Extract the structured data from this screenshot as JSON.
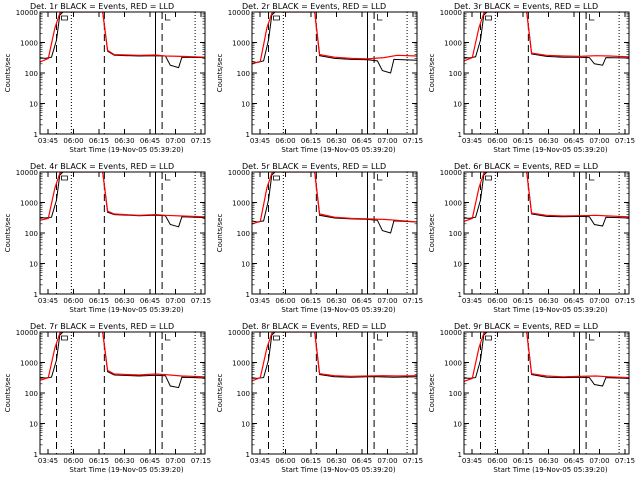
{
  "chart_data": {
    "type": "line",
    "y_scale": "log",
    "ylim": [
      1,
      10000
    ],
    "y_ticks": [
      "1",
      "10",
      "100",
      "1000",
      "10000"
    ],
    "ylabel": "Counts/sec",
    "x_ticks": [
      "03:45",
      "06:00",
      "06:15",
      "06:30",
      "06:45",
      "07:00",
      "07:15"
    ],
    "xlabel": "Start Time (19-Nov-05 05:39:20)",
    "marker_lines": [
      {
        "style": "dashed",
        "x_fraction": 0.1
      },
      {
        "style": "dotted",
        "x_fraction": 0.19
      },
      {
        "style": "dashed",
        "x_fraction": 0.39
      },
      {
        "style": "solid",
        "x_fraction": 0.7
      },
      {
        "style": "dashed",
        "x_fraction": 0.74
      },
      {
        "style": "dotted",
        "x_fraction": 0.94
      }
    ],
    "series_colors": {
      "events": "#000000",
      "lld": "#ff0000"
    },
    "panels": [
      {
        "title": "Det. 1r BLACK = Events, RED = LLD",
        "lld": [
          [
            0.0,
            230
          ],
          [
            0.05,
            300
          ],
          [
            0.09,
            3000
          ],
          [
            0.12,
            9000
          ],
          [
            0.13,
            10000
          ],
          [
            0.38,
            10000
          ],
          [
            0.41,
            550
          ],
          [
            0.45,
            400
          ],
          [
            0.6,
            380
          ],
          [
            0.7,
            390
          ],
          [
            0.76,
            360
          ],
          [
            0.86,
            350
          ],
          [
            1.0,
            330
          ]
        ],
        "events": [
          [
            0.0,
            320
          ],
          [
            0.03,
            300
          ],
          [
            0.07,
            330
          ],
          [
            0.1,
            1200
          ],
          [
            0.12,
            8000
          ],
          [
            0.14,
            10000
          ],
          [
            0.38,
            10000
          ],
          [
            0.41,
            520
          ],
          [
            0.45,
            380
          ],
          [
            0.6,
            360
          ],
          [
            0.7,
            370
          ],
          [
            0.76,
            360
          ],
          [
            0.79,
            180
          ],
          [
            0.84,
            150
          ],
          [
            0.86,
            330
          ],
          [
            1.0,
            320
          ]
        ]
      },
      {
        "title": "Det. 2r BLACK = Events, RED = LLD",
        "lld": [
          [
            0.0,
            200
          ],
          [
            0.05,
            240
          ],
          [
            0.09,
            3000
          ],
          [
            0.12,
            9000
          ],
          [
            0.13,
            10000
          ],
          [
            0.38,
            10000
          ],
          [
            0.41,
            400
          ],
          [
            0.5,
            330
          ],
          [
            0.6,
            300
          ],
          [
            0.7,
            290
          ],
          [
            0.8,
            320
          ],
          [
            0.88,
            380
          ],
          [
            1.0,
            360
          ]
        ],
        "events": [
          [
            0.0,
            240
          ],
          [
            0.03,
            220
          ],
          [
            0.07,
            250
          ],
          [
            0.1,
            1200
          ],
          [
            0.12,
            8000
          ],
          [
            0.14,
            10000
          ],
          [
            0.38,
            10000
          ],
          [
            0.41,
            370
          ],
          [
            0.5,
            300
          ],
          [
            0.6,
            280
          ],
          [
            0.7,
            270
          ],
          [
            0.76,
            250
          ],
          [
            0.79,
            120
          ],
          [
            0.84,
            100
          ],
          [
            0.86,
            280
          ],
          [
            1.0,
            260
          ]
        ]
      },
      {
        "title": "Det. 3r BLACK = Events, RED = LLD",
        "lld": [
          [
            0.0,
            250
          ],
          [
            0.05,
            320
          ],
          [
            0.09,
            3000
          ],
          [
            0.12,
            9000
          ],
          [
            0.13,
            10000
          ],
          [
            0.38,
            10000
          ],
          [
            0.41,
            450
          ],
          [
            0.5,
            380
          ],
          [
            0.6,
            360
          ],
          [
            0.7,
            350
          ],
          [
            0.8,
            370
          ],
          [
            0.88,
            360
          ],
          [
            1.0,
            340
          ]
        ],
        "events": [
          [
            0.0,
            330
          ],
          [
            0.03,
            310
          ],
          [
            0.07,
            340
          ],
          [
            0.1,
            1200
          ],
          [
            0.12,
            8000
          ],
          [
            0.14,
            10000
          ],
          [
            0.38,
            10000
          ],
          [
            0.41,
            420
          ],
          [
            0.5,
            350
          ],
          [
            0.6,
            330
          ],
          [
            0.7,
            330
          ],
          [
            0.76,
            320
          ],
          [
            0.79,
            200
          ],
          [
            0.84,
            180
          ],
          [
            0.86,
            320
          ],
          [
            1.0,
            310
          ]
        ]
      },
      {
        "title": "Det. 4r BLACK = Events, RED = LLD",
        "lld": [
          [
            0.0,
            260
          ],
          [
            0.05,
            300
          ],
          [
            0.09,
            3000
          ],
          [
            0.12,
            9000
          ],
          [
            0.13,
            10000
          ],
          [
            0.38,
            10000
          ],
          [
            0.41,
            520
          ],
          [
            0.45,
            420
          ],
          [
            0.6,
            380
          ],
          [
            0.7,
            400
          ],
          [
            0.76,
            380
          ],
          [
            0.86,
            360
          ],
          [
            1.0,
            340
          ]
        ],
        "events": [
          [
            0.0,
            330
          ],
          [
            0.03,
            310
          ],
          [
            0.07,
            330
          ],
          [
            0.1,
            1200
          ],
          [
            0.12,
            8000
          ],
          [
            0.14,
            10000
          ],
          [
            0.38,
            10000
          ],
          [
            0.41,
            480
          ],
          [
            0.45,
            400
          ],
          [
            0.6,
            370
          ],
          [
            0.7,
            380
          ],
          [
            0.76,
            370
          ],
          [
            0.79,
            190
          ],
          [
            0.84,
            160
          ],
          [
            0.86,
            340
          ],
          [
            1.0,
            320
          ]
        ]
      },
      {
        "title": "Det. 5r BLACK = Events, RED = LLD",
        "lld": [
          [
            0.0,
            200
          ],
          [
            0.05,
            240
          ],
          [
            0.09,
            3000
          ],
          [
            0.12,
            9000
          ],
          [
            0.13,
            10000
          ],
          [
            0.38,
            10000
          ],
          [
            0.41,
            420
          ],
          [
            0.5,
            330
          ],
          [
            0.6,
            300
          ],
          [
            0.7,
            290
          ],
          [
            0.8,
            280
          ],
          [
            0.88,
            260
          ],
          [
            1.0,
            230
          ]
        ],
        "events": [
          [
            0.0,
            250
          ],
          [
            0.03,
            230
          ],
          [
            0.07,
            250
          ],
          [
            0.1,
            1200
          ],
          [
            0.12,
            8000
          ],
          [
            0.14,
            10000
          ],
          [
            0.38,
            10000
          ],
          [
            0.41,
            380
          ],
          [
            0.5,
            310
          ],
          [
            0.6,
            290
          ],
          [
            0.7,
            280
          ],
          [
            0.76,
            260
          ],
          [
            0.79,
            120
          ],
          [
            0.84,
            100
          ],
          [
            0.86,
            250
          ],
          [
            1.0,
            230
          ]
        ]
      },
      {
        "title": "Det. 6r BLACK = Events, RED = LLD",
        "lld": [
          [
            0.0,
            240
          ],
          [
            0.05,
            300
          ],
          [
            0.09,
            3000
          ],
          [
            0.12,
            9000
          ],
          [
            0.13,
            10000
          ],
          [
            0.38,
            10000
          ],
          [
            0.41,
            450
          ],
          [
            0.5,
            380
          ],
          [
            0.6,
            360
          ],
          [
            0.7,
            370
          ],
          [
            0.8,
            380
          ],
          [
            0.88,
            360
          ],
          [
            1.0,
            340
          ]
        ],
        "events": [
          [
            0.0,
            320
          ],
          [
            0.03,
            300
          ],
          [
            0.07,
            330
          ],
          [
            0.1,
            1200
          ],
          [
            0.12,
            8000
          ],
          [
            0.14,
            10000
          ],
          [
            0.38,
            10000
          ],
          [
            0.41,
            420
          ],
          [
            0.5,
            350
          ],
          [
            0.6,
            340
          ],
          [
            0.7,
            350
          ],
          [
            0.76,
            340
          ],
          [
            0.79,
            190
          ],
          [
            0.84,
            170
          ],
          [
            0.86,
            330
          ],
          [
            1.0,
            310
          ]
        ]
      },
      {
        "title": "Det. 7r BLACK = Events, RED = LLD",
        "lld": [
          [
            0.0,
            260
          ],
          [
            0.05,
            320
          ],
          [
            0.09,
            3000
          ],
          [
            0.12,
            9000
          ],
          [
            0.13,
            10000
          ],
          [
            0.38,
            10000
          ],
          [
            0.41,
            550
          ],
          [
            0.45,
            420
          ],
          [
            0.6,
            390
          ],
          [
            0.7,
            420
          ],
          [
            0.76,
            400
          ],
          [
            0.86,
            360
          ],
          [
            1.0,
            340
          ]
        ],
        "events": [
          [
            0.0,
            330
          ],
          [
            0.03,
            310
          ],
          [
            0.07,
            330
          ],
          [
            0.1,
            1200
          ],
          [
            0.12,
            8000
          ],
          [
            0.14,
            10000
          ],
          [
            0.38,
            10000
          ],
          [
            0.41,
            500
          ],
          [
            0.45,
            390
          ],
          [
            0.6,
            360
          ],
          [
            0.7,
            380
          ],
          [
            0.76,
            370
          ],
          [
            0.79,
            170
          ],
          [
            0.84,
            150
          ],
          [
            0.86,
            330
          ],
          [
            1.0,
            310
          ]
        ]
      },
      {
        "title": "Det. 8r BLACK = Events, RED = LLD",
        "lld": [
          [
            0.0,
            250
          ],
          [
            0.05,
            320
          ],
          [
            0.09,
            3000
          ],
          [
            0.12,
            9000
          ],
          [
            0.13,
            10000
          ],
          [
            0.38,
            10000
          ],
          [
            0.41,
            430
          ],
          [
            0.5,
            370
          ],
          [
            0.6,
            350
          ],
          [
            0.7,
            360
          ],
          [
            0.8,
            370
          ],
          [
            0.88,
            360
          ],
          [
            1.0,
            370
          ]
        ],
        "events": [
          [
            0.0,
            320
          ],
          [
            0.03,
            300
          ],
          [
            0.07,
            320
          ],
          [
            0.1,
            1200
          ],
          [
            0.12,
            8000
          ],
          [
            0.14,
            10000
          ],
          [
            0.38,
            10000
          ],
          [
            0.41,
            400
          ],
          [
            0.5,
            340
          ],
          [
            0.6,
            330
          ],
          [
            0.7,
            340
          ],
          [
            0.76,
            340
          ],
          [
            0.86,
            330
          ],
          [
            1.0,
            340
          ]
        ]
      },
      {
        "title": "Det. 9r BLACK = Events, RED = LLD",
        "lld": [
          [
            0.0,
            240
          ],
          [
            0.05,
            300
          ],
          [
            0.09,
            3000
          ],
          [
            0.12,
            9000
          ],
          [
            0.13,
            10000
          ],
          [
            0.38,
            10000
          ],
          [
            0.41,
            430
          ],
          [
            0.5,
            360
          ],
          [
            0.6,
            340
          ],
          [
            0.7,
            350
          ],
          [
            0.8,
            360
          ],
          [
            0.88,
            340
          ],
          [
            1.0,
            320
          ]
        ],
        "events": [
          [
            0.0,
            320
          ],
          [
            0.03,
            300
          ],
          [
            0.07,
            320
          ],
          [
            0.1,
            1200
          ],
          [
            0.12,
            8000
          ],
          [
            0.14,
            10000
          ],
          [
            0.38,
            10000
          ],
          [
            0.41,
            400
          ],
          [
            0.5,
            330
          ],
          [
            0.6,
            320
          ],
          [
            0.7,
            330
          ],
          [
            0.76,
            320
          ],
          [
            0.79,
            190
          ],
          [
            0.84,
            170
          ],
          [
            0.86,
            320
          ],
          [
            1.0,
            300
          ]
        ]
      }
    ]
  }
}
